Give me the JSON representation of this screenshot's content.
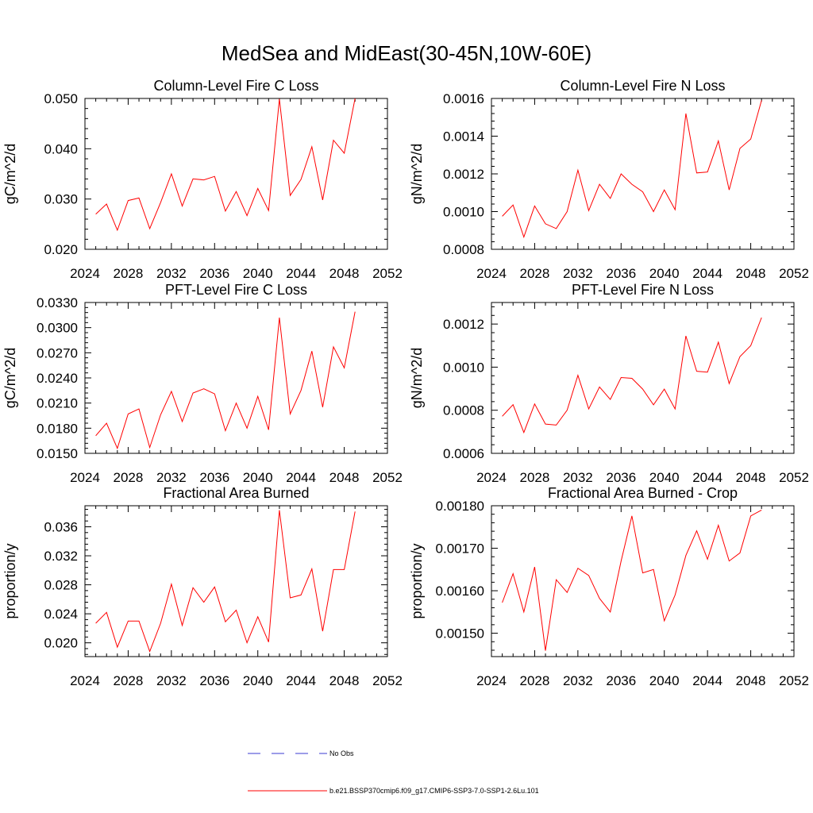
{
  "title": "MedSea and MidEast(30-45N,10W-60E)",
  "legend": [
    {
      "label": "No Obs",
      "color": "#3b3bd1",
      "dash": true
    },
    {
      "label": "b.e21.BSSP370cmip6.f09_g17.CMIP6-SSP3-7.0-SSP1-2.6Lu.101",
      "color": "#ff0000",
      "dash": false
    }
  ],
  "chart_data": [
    {
      "type": "line",
      "title": "Column-Level Fire C Loss",
      "ylabel": "gC/m^2/d",
      "xlim": [
        2024,
        2052
      ],
      "ylim": [
        0.02,
        0.05
      ],
      "xticks": [
        "2024",
        "2028",
        "2032",
        "2036",
        "2040",
        "2044",
        "2048",
        "2052"
      ],
      "yticks": [
        "0.020",
        "0.030",
        "0.040",
        "0.050"
      ],
      "x": [
        2025,
        2026,
        2027,
        2028,
        2029,
        2030,
        2031,
        2032,
        2033,
        2034,
        2035,
        2036,
        2037,
        2038,
        2039,
        2040,
        2041,
        2042,
        2043,
        2044,
        2045,
        2046,
        2047,
        2048,
        2049
      ],
      "series": [
        {
          "color": "#ff0000",
          "values": [
            0.027,
            0.029,
            0.0238,
            0.0297,
            0.0302,
            0.0241,
            0.0293,
            0.035,
            0.0286,
            0.034,
            0.0338,
            0.0345,
            0.0276,
            0.0315,
            0.0267,
            0.0321,
            0.0277,
            0.0499,
            0.0307,
            0.0339,
            0.0404,
            0.0298,
            0.0417,
            0.0391,
            0.05
          ]
        }
      ]
    },
    {
      "type": "line",
      "title": "Column-Level Fire N Loss",
      "ylabel": "gN/m^2/d",
      "xlim": [
        2024,
        2052
      ],
      "ylim": [
        0.0008,
        0.0016
      ],
      "xticks": [
        "2024",
        "2028",
        "2032",
        "2036",
        "2040",
        "2044",
        "2048",
        "2052"
      ],
      "yticks": [
        "0.0008",
        "0.0010",
        "0.0012",
        "0.0014",
        "0.0016"
      ],
      "x": [
        2025,
        2026,
        2027,
        2028,
        2029,
        2030,
        2031,
        2032,
        2033,
        2034,
        2035,
        2036,
        2037,
        2038,
        2039,
        2040,
        2041,
        2042,
        2043,
        2044,
        2045,
        2046,
        2047,
        2048,
        2049
      ],
      "series": [
        {
          "color": "#ff0000",
          "values": [
            0.000975,
            0.001035,
            0.000865,
            0.00103,
            0.000935,
            0.00091,
            0.001,
            0.00122,
            0.001005,
            0.001145,
            0.00107,
            0.0012,
            0.001145,
            0.001105,
            0.001,
            0.001115,
            0.00101,
            0.00152,
            0.001205,
            0.00121,
            0.001375,
            0.001115,
            0.001335,
            0.001385,
            0.00159
          ]
        }
      ]
    },
    {
      "type": "line",
      "title": "PFT-Level Fire C Loss",
      "ylabel": "gC/m^2/d",
      "xlim": [
        2024,
        2052
      ],
      "ylim": [
        0.015,
        0.033
      ],
      "xticks": [
        "2024",
        "2028",
        "2032",
        "2036",
        "2040",
        "2044",
        "2048",
        "2052"
      ],
      "yticks": [
        "0.0150",
        "0.0180",
        "0.0210",
        "0.0240",
        "0.0270",
        "0.0300",
        "0.0330"
      ],
      "x": [
        2025,
        2026,
        2027,
        2028,
        2029,
        2030,
        2031,
        2032,
        2033,
        2034,
        2035,
        2036,
        2037,
        2038,
        2039,
        2040,
        2041,
        2042,
        2043,
        2044,
        2045,
        2046,
        2047,
        2048,
        2049
      ],
      "series": [
        {
          "color": "#ff0000",
          "values": [
            0.0171,
            0.0186,
            0.0156,
            0.0197,
            0.0203,
            0.0157,
            0.0196,
            0.0224,
            0.0188,
            0.0222,
            0.0227,
            0.0221,
            0.0177,
            0.021,
            0.018,
            0.0218,
            0.0178,
            0.0312,
            0.0197,
            0.0225,
            0.0272,
            0.0205,
            0.0277,
            0.0252,
            0.0319
          ]
        }
      ]
    },
    {
      "type": "line",
      "title": "PFT-Level Fire N Loss",
      "ylabel": "gN/m^2/d",
      "xlim": [
        2024,
        2052
      ],
      "ylim": [
        0.0006,
        0.0013
      ],
      "xticks": [
        "2024",
        "2028",
        "2032",
        "2036",
        "2040",
        "2044",
        "2048",
        "2052"
      ],
      "yticks": [
        "0.0006",
        "0.0008",
        "0.0010",
        "0.0012"
      ],
      "x": [
        2025,
        2026,
        2027,
        2028,
        2029,
        2030,
        2031,
        2032,
        2033,
        2034,
        2035,
        2036,
        2037,
        2038,
        2039,
        2040,
        2041,
        2042,
        2043,
        2044,
        2045,
        2046,
        2047,
        2048,
        2049
      ],
      "series": [
        {
          "color": "#ff0000",
          "values": [
            0.000772,
            0.000826,
            0.000697,
            0.000829,
            0.000736,
            0.000731,
            0.0008,
            0.000962,
            0.000806,
            0.000908,
            0.00085,
            0.000952,
            0.000948,
            0.000898,
            0.000825,
            0.000898,
            0.000806,
            0.001145,
            0.000981,
            0.000977,
            0.001116,
            0.000924,
            0.001049,
            0.0011,
            0.00123
          ]
        }
      ]
    },
    {
      "type": "line",
      "title": "Fractional Area Burned",
      "ylabel": "proportion/y",
      "xlim": [
        2024,
        2052
      ],
      "ylim": [
        0.0181,
        0.0389
      ],
      "xticks": [
        "2024",
        "2028",
        "2032",
        "2036",
        "2040",
        "2044",
        "2048",
        "2052"
      ],
      "yticks": [
        "0.020",
        "0.024",
        "0.028",
        "0.032",
        "0.036"
      ],
      "x": [
        2025,
        2026,
        2027,
        2028,
        2029,
        2030,
        2031,
        2032,
        2033,
        2034,
        2035,
        2036,
        2037,
        2038,
        2039,
        2040,
        2041,
        2042,
        2043,
        2044,
        2045,
        2046,
        2047,
        2048,
        2049
      ],
      "series": [
        {
          "color": "#ff0000",
          "values": [
            0.0227,
            0.0242,
            0.0194,
            0.023,
            0.023,
            0.0188,
            0.0227,
            0.0281,
            0.0224,
            0.0276,
            0.0256,
            0.0277,
            0.0229,
            0.0245,
            0.02,
            0.0236,
            0.0201,
            0.0383,
            0.0262,
            0.0266,
            0.0302,
            0.0216,
            0.0301,
            0.0301,
            0.0381
          ]
        }
      ]
    },
    {
      "type": "line",
      "title": "Fractional Area Burned - Crop",
      "ylabel": "proportion/y",
      "xlim": [
        2024,
        2052
      ],
      "ylim": [
        0.001445,
        0.0018
      ],
      "xticks": [
        "2024",
        "2028",
        "2032",
        "2036",
        "2040",
        "2044",
        "2048",
        "2052"
      ],
      "yticks": [
        "0.00150",
        "0.00160",
        "0.00170",
        "0.00180"
      ],
      "x": [
        2025,
        2026,
        2027,
        2028,
        2029,
        2030,
        2031,
        2032,
        2033,
        2034,
        2035,
        2036,
        2037,
        2038,
        2039,
        2040,
        2041,
        2042,
        2043,
        2044,
        2045,
        2046,
        2047,
        2048,
        2049
      ],
      "series": [
        {
          "color": "#ff0000",
          "values": [
            0.001572,
            0.00164,
            0.00155,
            0.001656,
            0.001459,
            0.001626,
            0.001596,
            0.001653,
            0.001636,
            0.001582,
            0.00155,
            0.00167,
            0.001776,
            0.001642,
            0.00165,
            0.001529,
            0.00159,
            0.001683,
            0.001741,
            0.001674,
            0.001754,
            0.00167,
            0.001689,
            0.001776,
            0.00179
          ]
        }
      ]
    }
  ]
}
